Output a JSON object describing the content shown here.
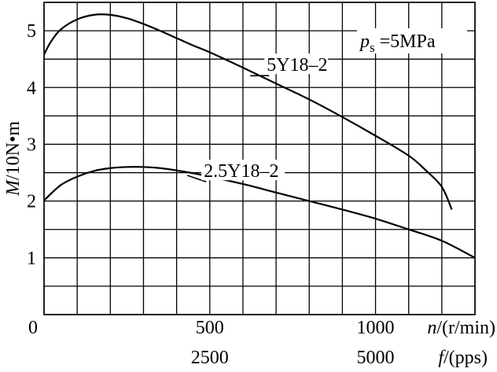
{
  "chart_data": {
    "type": "line",
    "title": "",
    "ylabel": "M/10N•m",
    "ylabel_italic": "M",
    "ylabel_rest": "/10N•m",
    "xlabel_n": "n/(r/min)",
    "xlabel_n_italic": "n",
    "xlabel_n_rest": "/(r/min)",
    "xlabel_f": "f/(pps)",
    "xlabel_f_italic": "f",
    "xlabel_f_rest": "/(pps)",
    "xlim": [
      0,
      1300
    ],
    "ylim": [
      0,
      5.5
    ],
    "grid": true,
    "x_gridlines": [
      0,
      100,
      200,
      300,
      400,
      500,
      600,
      700,
      800,
      900,
      1000,
      1100,
      1200,
      1300
    ],
    "y_gridlines": [
      0,
      0.5,
      1,
      1.5,
      2,
      2.5,
      3,
      3.5,
      4,
      4.5,
      5,
      5.5
    ],
    "y_ticks": [
      {
        "value": 1,
        "label": "1"
      },
      {
        "value": 2,
        "label": "2"
      },
      {
        "value": 3,
        "label": "3"
      },
      {
        "value": 4,
        "label": "4"
      },
      {
        "value": 5,
        "label": "5"
      }
    ],
    "x_ticks_n": [
      {
        "value": 0,
        "label": "0"
      },
      {
        "value": 500,
        "label": "500"
      },
      {
        "value": 1000,
        "label": "1000"
      }
    ],
    "x_ticks_f": [
      {
        "value": 500,
        "label": "2500"
      },
      {
        "value": 1000,
        "label": "5000"
      }
    ],
    "annotation": {
      "italic": "p",
      "sub": "s",
      "rest": " =5MPa"
    },
    "series": [
      {
        "name": "5Y18–2",
        "x": [
          0,
          20,
          50,
          100,
          150,
          200,
          250,
          300,
          350,
          400,
          450,
          500,
          600,
          700,
          800,
          900,
          1000,
          1100,
          1150,
          1200,
          1230
        ],
        "y": [
          4.58,
          4.8,
          5.02,
          5.2,
          5.28,
          5.28,
          5.22,
          5.12,
          5.0,
          4.87,
          4.74,
          4.62,
          4.35,
          4.07,
          3.79,
          3.48,
          3.15,
          2.8,
          2.55,
          2.25,
          1.85
        ],
        "label_x": 660,
        "label_y": 4.32
      },
      {
        "name": "2.5Y18–2",
        "x": [
          0,
          50,
          100,
          150,
          200,
          250,
          300,
          350,
          400,
          450,
          500,
          600,
          700,
          800,
          900,
          1000,
          1100,
          1200,
          1300
        ],
        "y": [
          2.01,
          2.28,
          2.43,
          2.53,
          2.58,
          2.6,
          2.6,
          2.58,
          2.54,
          2.49,
          2.43,
          2.3,
          2.15,
          2.0,
          1.85,
          1.69,
          1.5,
          1.3,
          1.0
        ],
        "label_x": 470,
        "label_y": 2.45
      }
    ]
  }
}
